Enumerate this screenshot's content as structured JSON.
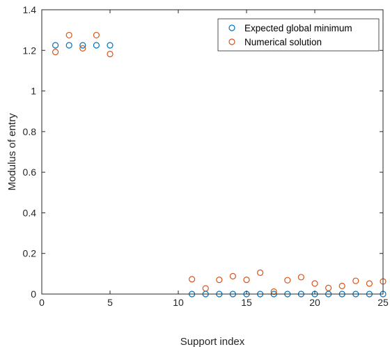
{
  "chart_data": {
    "type": "scatter",
    "title": "",
    "xlabel": "Support index",
    "ylabel": "Modulus of entry",
    "xlim": [
      0,
      25
    ],
    "ylim": [
      0,
      1.4
    ],
    "x_ticks": [
      0,
      5,
      10,
      15,
      20,
      25
    ],
    "y_ticks": [
      0,
      0.2,
      0.4,
      0.6,
      0.8,
      1,
      1.2,
      1.4
    ],
    "legend_position": "top-right",
    "grid": false,
    "series": [
      {
        "name": "Expected global minimum",
        "color": "#0072BD",
        "marker": "open-circle",
        "x": [
          1,
          2,
          3,
          4,
          5,
          11,
          12,
          13,
          14,
          15,
          16,
          17,
          18,
          19,
          20,
          21,
          22,
          23,
          24,
          25
        ],
        "y": [
          1.225,
          1.225,
          1.225,
          1.225,
          1.225,
          0,
          0,
          0,
          0,
          0,
          0,
          0,
          0,
          0,
          0,
          0,
          0,
          0,
          0,
          0
        ]
      },
      {
        "name": "Numerical solution",
        "color": "#D95319",
        "marker": "open-circle",
        "x": [
          1,
          2,
          3,
          4,
          5,
          11,
          12,
          13,
          14,
          15,
          16,
          17,
          18,
          19,
          20,
          21,
          22,
          23,
          24,
          25
        ],
        "y": [
          1.192,
          1.275,
          1.21,
          1.275,
          1.182,
          0.073,
          0.028,
          0.07,
          0.088,
          0.07,
          0.105,
          0.012,
          0.068,
          0.083,
          0.052,
          0.03,
          0.04,
          0.065,
          0.052,
          0.062
        ]
      }
    ]
  }
}
